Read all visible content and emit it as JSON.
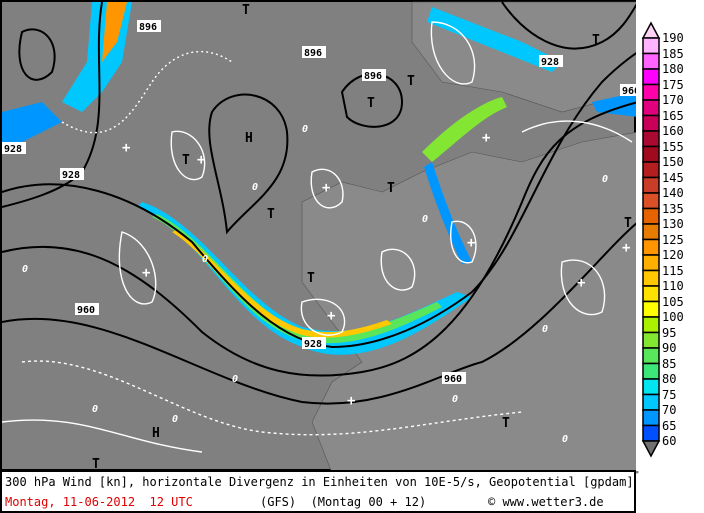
{
  "map": {
    "pressure_labels": [
      "896",
      "896",
      "896",
      "928",
      "928",
      "928",
      "928",
      "960",
      "960",
      "960"
    ],
    "high_label": "H",
    "low_label": "T",
    "plus_label": "+",
    "zero_label": "0",
    "colors": {
      "background": "#808080",
      "land": "#8a8a8a",
      "contour": "#000000",
      "divergence": "#ffffff"
    }
  },
  "legend": {
    "values": [
      "190",
      "185",
      "180",
      "175",
      "170",
      "165",
      "160",
      "155",
      "150",
      "145",
      "140",
      "135",
      "130",
      "125",
      "120",
      "115",
      "110",
      "105",
      "100",
      "95",
      "90",
      "85",
      "80",
      "75",
      "70",
      "65",
      "60"
    ],
    "colors": [
      "#ffb4ff",
      "#ff64ff",
      "#ff00ff",
      "#ff00aa",
      "#e1007d",
      "#c8005a",
      "#aa0a32",
      "#a00a1e",
      "#b41e1e",
      "#c83c28",
      "#dc5028",
      "#e66400",
      "#e67d00",
      "#ff9600",
      "#ffaf00",
      "#ffc800",
      "#ffe100",
      "#ffff00",
      "#aaf000",
      "#82e632",
      "#5ae65a",
      "#3ce678",
      "#00e6f0",
      "#00c8ff",
      "#0096ff",
      "#0050ff"
    ],
    "above_color": "#ffd2f5",
    "below_color": "#707070"
  },
  "caption": {
    "line1": "300 hPa Wind [kn], horizontale Divergenz in Einheiten von 10E-5/s, Geopotential [gpdam]",
    "date": "Montag, 11-06-2012  12 UTC",
    "model": "(GFS)  (Montag 00 + 12)",
    "copyright": "© www.wetter3.de"
  }
}
